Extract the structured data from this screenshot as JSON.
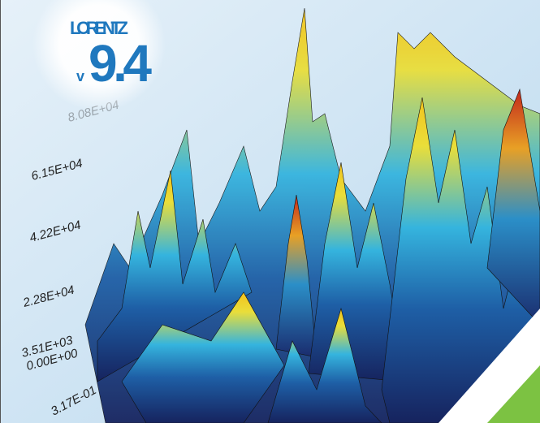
{
  "logo": {
    "name": "LORENTZ",
    "version_prefix": "v",
    "version": "9.4"
  },
  "z_axis_labels": [
    "8.08E+04",
    "6.15E+04",
    "4.22E+04",
    "2.28E+04",
    "3.51E+03"
  ],
  "x_axis_labels": [
    "0.00E+00",
    "3.17E-01"
  ]
}
